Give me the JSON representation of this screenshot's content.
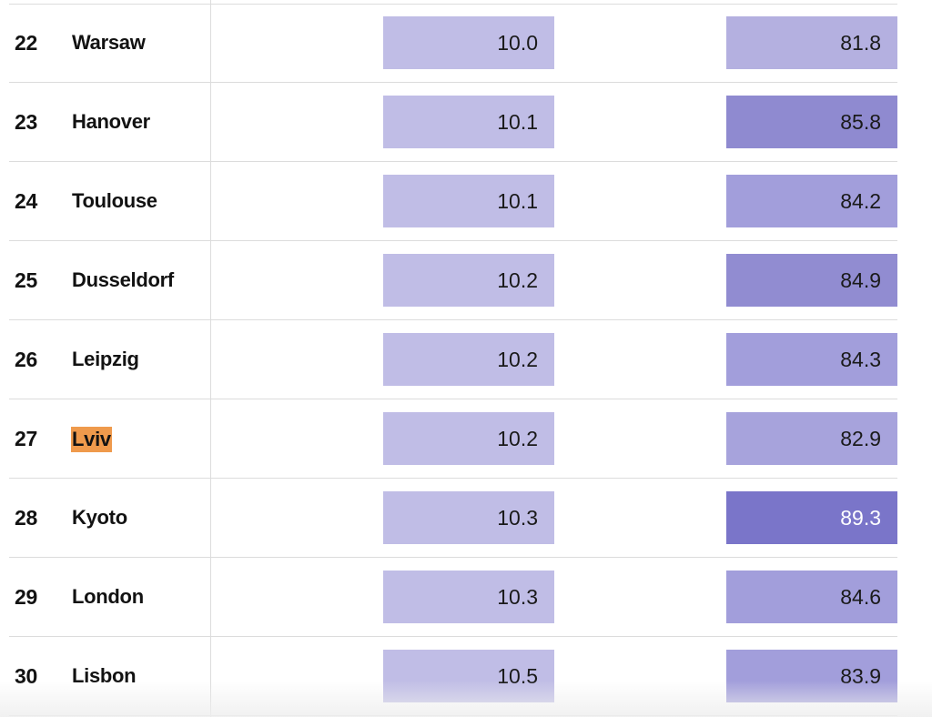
{
  "rows": [
    {
      "rank": "22",
      "city": "Warsaw",
      "value_a": "10.0",
      "value_b": "81.8",
      "color_a": "#c0bde6",
      "color_b": "#b4b0e0",
      "text_b": "#1a1a1a",
      "highlight": false
    },
    {
      "rank": "23",
      "city": "Hanover",
      "value_a": "10.1",
      "value_b": "85.8",
      "color_a": "#c0bde6",
      "color_b": "#8f8ad0",
      "text_b": "#1a1a1a",
      "highlight": false
    },
    {
      "rank": "24",
      "city": "Toulouse",
      "value_a": "10.1",
      "value_b": "84.2",
      "color_a": "#c0bde6",
      "color_b": "#a29edb",
      "text_b": "#1a1a1a",
      "highlight": false
    },
    {
      "rank": "25",
      "city": "Dusseldorf",
      "value_a": "10.2",
      "value_b": "84.9",
      "color_a": "#c0bde6",
      "color_b": "#918cd1",
      "text_b": "#1a1a1a",
      "highlight": false
    },
    {
      "rank": "26",
      "city": "Leipzig",
      "value_a": "10.2",
      "value_b": "84.3",
      "color_a": "#c0bde6",
      "color_b": "#a29edb",
      "text_b": "#1a1a1a",
      "highlight": false
    },
    {
      "rank": "27",
      "city": "Lviv",
      "value_a": "10.2",
      "value_b": "82.9",
      "color_a": "#c0bde6",
      "color_b": "#a7a3dc",
      "text_b": "#1a1a1a",
      "highlight": true
    },
    {
      "rank": "28",
      "city": "Kyoto",
      "value_a": "10.3",
      "value_b": "89.3",
      "color_a": "#c0bde6",
      "color_b": "#7a75c9",
      "text_b": "#ffffff",
      "highlight": false
    },
    {
      "rank": "29",
      "city": "London",
      "value_a": "10.3",
      "value_b": "84.6",
      "color_a": "#c0bde6",
      "color_b": "#a29edb",
      "text_b": "#1a1a1a",
      "highlight": false
    },
    {
      "rank": "30",
      "city": "Lisbon",
      "value_a": "10.5",
      "value_b": "83.9",
      "color_a": "#c0bde6",
      "color_b": "#a29edb",
      "text_b": "#1a1a1a",
      "highlight": false
    }
  ],
  "highlight_color": "#ef9a4c"
}
